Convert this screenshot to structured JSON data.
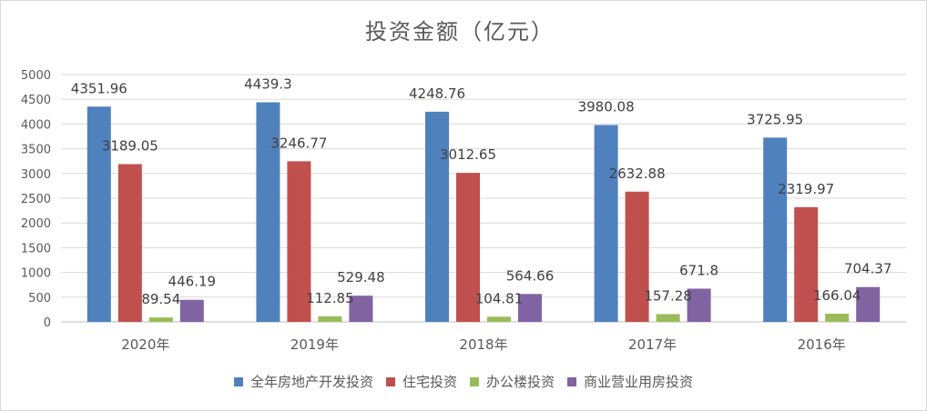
{
  "chart_data": {
    "type": "bar",
    "title": "投资金额（亿元）",
    "categories": [
      "2020年",
      "2019年",
      "2018年",
      "2017年",
      "2016年"
    ],
    "series": [
      {
        "name": "全年房地产开发投资",
        "color": "#4f81bd",
        "values": [
          4351.96,
          4439.3,
          4248.76,
          3980.08,
          3725.95
        ],
        "labels": [
          "4351.96",
          "4439.3",
          "4248.76",
          "3980.08",
          "3725.95"
        ]
      },
      {
        "name": "住宅投资",
        "color": "#c0504d",
        "values": [
          3189.05,
          3246.77,
          3012.65,
          2632.88,
          2319.97
        ],
        "labels": [
          "3189.05",
          "3246.77",
          "3012.65",
          "2632.88",
          "2319.97"
        ]
      },
      {
        "name": "办公楼投资",
        "color": "#9bbb59",
        "values": [
          89.54,
          112.85,
          104.81,
          157.28,
          166.04
        ],
        "labels": [
          "89.54",
          "112.85",
          "104.81",
          "157.28",
          "166.04"
        ]
      },
      {
        "name": "商业营业用房投资",
        "color": "#8064a2",
        "values": [
          446.19,
          529.48,
          564.66,
          671.8,
          704.37
        ],
        "labels": [
          "446.19",
          "529.48",
          "564.66",
          "671.8",
          "704.37"
        ]
      }
    ],
    "ylim": [
      0,
      5000
    ],
    "yticks": [
      "0",
      "500",
      "1000",
      "1500",
      "2000",
      "2500",
      "3000",
      "3500",
      "4000",
      "4500",
      "5000"
    ],
    "grid": true,
    "legend_position": "bottom"
  }
}
